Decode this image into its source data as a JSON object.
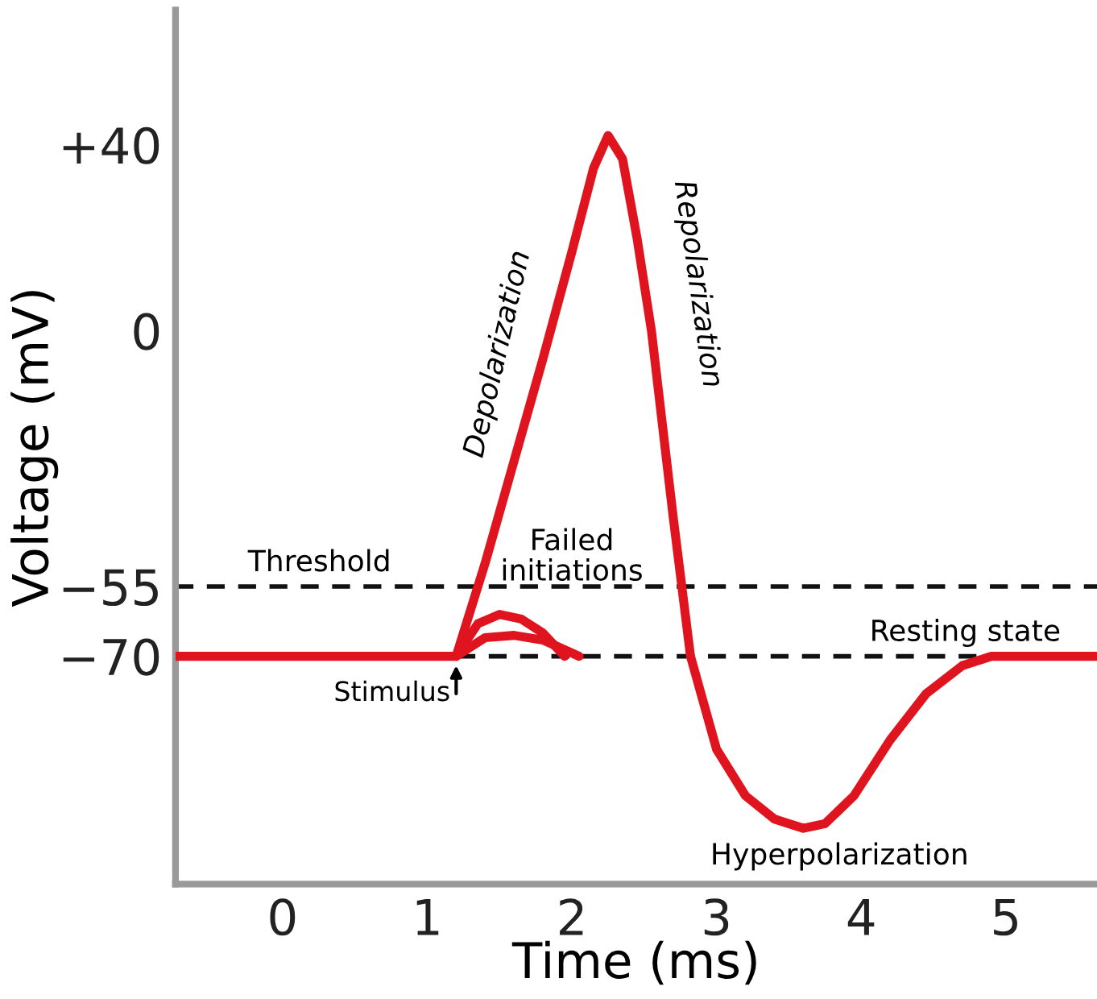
{
  "chart_data": {
    "type": "line",
    "xlabel": "Time (ms)",
    "ylabel": "Voltage (mV)",
    "xlim": [
      -0.74,
      5.63
    ],
    "ylim": [
      -119,
      69
    ],
    "xticks": [
      0,
      1,
      2,
      3,
      4,
      5
    ],
    "yticks": [
      {
        "value": 40,
        "label": "+40"
      },
      0,
      {
        "value": -55,
        "label": "−55"
      },
      {
        "value": -70,
        "label": "−70"
      }
    ],
    "grid": false,
    "legend": false,
    "marker": "none",
    "line_style": "solid",
    "series": [
      {
        "color": "#e0141e",
        "x": [
          -0.74,
          1.2,
          1.4,
          1.6,
          1.8,
          2.0,
          2.15,
          2.25,
          2.35,
          2.45,
          2.55,
          2.7,
          2.82,
          3.0,
          3.2,
          3.4,
          3.6,
          3.75,
          3.95,
          4.2,
          4.45,
          4.7,
          4.9,
          5.63
        ],
        "values": [
          -70,
          -70,
          -50,
          -28,
          -6,
          17,
          35,
          42,
          37,
          20,
          0,
          -40,
          -70,
          -90,
          -100,
          -105,
          -107,
          -106,
          -100,
          -88,
          -78,
          -72,
          -70,
          -70
        ]
      },
      {
        "color": "#e0141e",
        "x": [
          1.2,
          1.35,
          1.5,
          1.65,
          1.8,
          1.95
        ],
        "values": [
          -70,
          -63,
          -61,
          -62,
          -65,
          -70
        ]
      },
      {
        "color": "#e0141e",
        "x": [
          1.2,
          1.4,
          1.6,
          1.8,
          2.05
        ],
        "values": [
          -70,
          -66,
          -65.5,
          -66.5,
          -70
        ]
      }
    ],
    "ref_lines": [
      {
        "axis": "y",
        "value": -55,
        "label": "Threshold",
        "color": "#111111",
        "line_style": "dashed"
      },
      {
        "axis": "y",
        "value": -70,
        "label": "Resting state",
        "color": "#111111",
        "line_style": "dashed"
      }
    ],
    "annotations": [
      {
        "text": "Depolarization",
        "x": 1.75,
        "y": -5
      },
      {
        "text": "Repolarization",
        "x": 2.55,
        "y": 0
      },
      {
        "text": "Failed initiations",
        "x": 2.0,
        "y": -55
      },
      {
        "text": "Stimulus",
        "x": 1.2,
        "y": -70
      },
      {
        "text": "Hyperpolarization",
        "x": 3.6,
        "y": -107
      }
    ]
  }
}
